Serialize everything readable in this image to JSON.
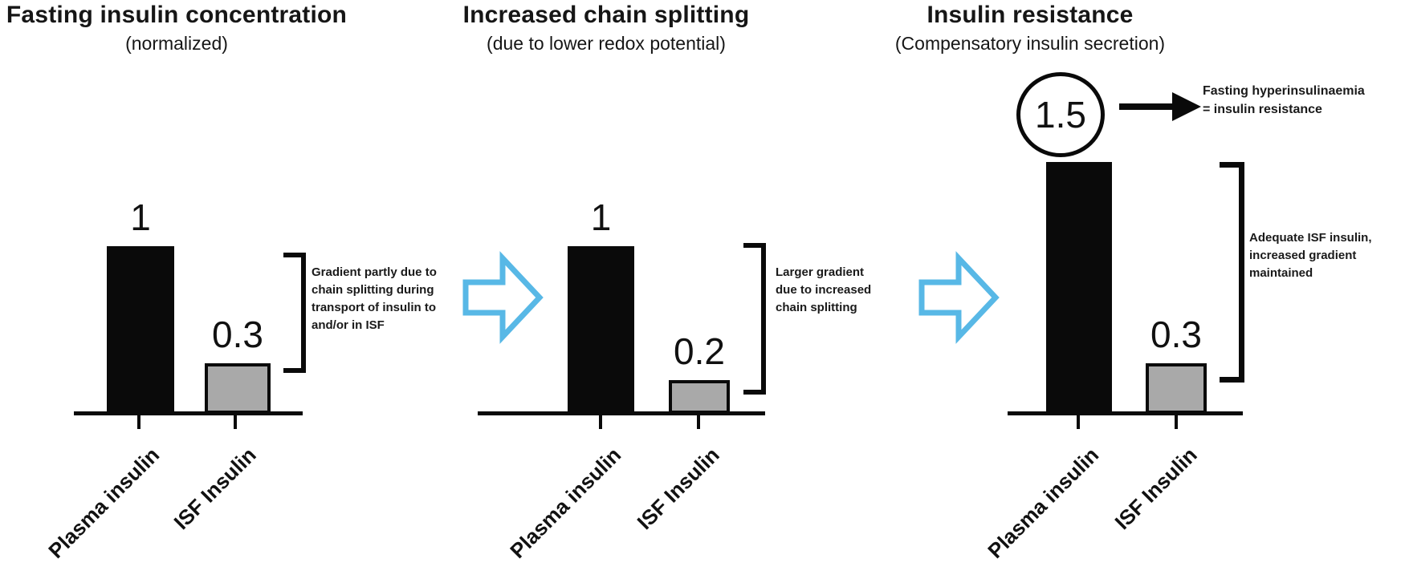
{
  "figure": {
    "colors": {
      "bar_black": "#0a0a0a",
      "bar_gray": "#a9a9a9",
      "flow_arrow_blue": "#58b8e6",
      "background": "#ffffff",
      "text": "#161616"
    },
    "flow_arrow_count": 2
  },
  "chart_data": [
    {
      "type": "bar",
      "title": "Fasting insulin concentration",
      "subtitle": "(normalized)",
      "categories": [
        "Plasma insulin",
        "ISF Insulin"
      ],
      "values": [
        1,
        0.3
      ],
      "value_labels": [
        "1",
        "0.3"
      ],
      "bar_colors": [
        "#0a0a0a",
        "#a9a9a9"
      ],
      "xlabel": "",
      "ylabel": "",
      "ylim": [
        0,
        1.6
      ],
      "grid": false,
      "legend": "none",
      "bracket_note": "Gradient partly due to\nchain splitting during\ntransport of insulin to\nand/or in ISF"
    },
    {
      "type": "bar",
      "title": "Increased chain splitting",
      "subtitle": "(due to lower redox potential)",
      "categories": [
        "Plasma insulin",
        "ISF Insulin"
      ],
      "values": [
        1,
        0.2
      ],
      "value_labels": [
        "1",
        "0.2"
      ],
      "bar_colors": [
        "#0a0a0a",
        "#a9a9a9"
      ],
      "xlabel": "",
      "ylabel": "",
      "ylim": [
        0,
        1.6
      ],
      "grid": false,
      "legend": "none",
      "bracket_note": "Larger gradient\ndue to increased\nchain splitting"
    },
    {
      "type": "bar",
      "title": "Insulin resistance",
      "subtitle": "(Compensatory insulin secretion)",
      "categories": [
        "Plasma insulin",
        "ISF Insulin"
      ],
      "values": [
        1.5,
        0.3
      ],
      "value_labels": [
        "1.5",
        "0.3"
      ],
      "bar_colors": [
        "#0a0a0a",
        "#a9a9a9"
      ],
      "xlabel": "",
      "ylabel": "",
      "ylim": [
        0,
        1.6
      ],
      "grid": false,
      "legend": "none",
      "circled_value": "1.5",
      "arrow_note": "Fasting hyperinsulinaemia\n= insulin resistance",
      "bracket_note": "Adequate ISF insulin,\nincreased gradient\nmaintained"
    }
  ]
}
